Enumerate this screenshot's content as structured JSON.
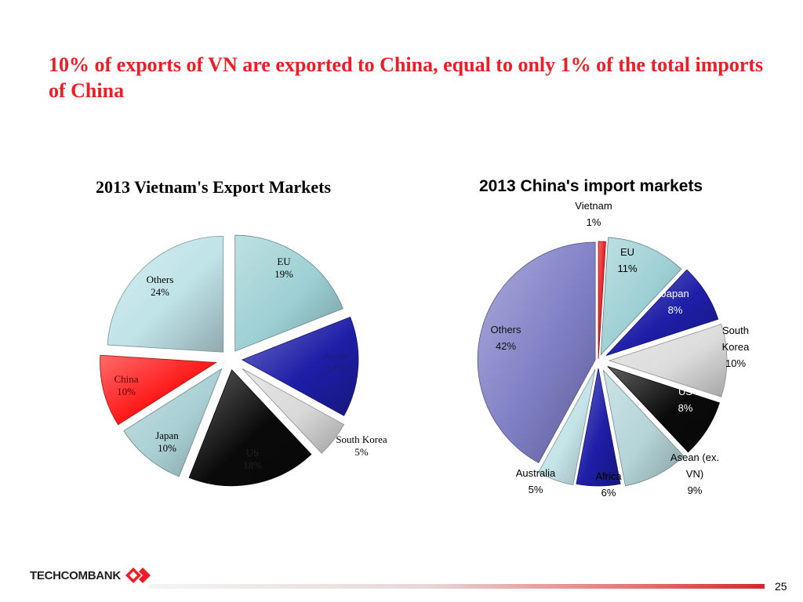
{
  "slide": {
    "title": "10% of exports of VN are exported to China, equal to only 1% of the total imports of China",
    "page_number": "25",
    "logo": {
      "part1": "TECHCOM",
      "part2": "BANK"
    }
  },
  "chart_data": [
    {
      "type": "pie",
      "title": "2013 Vietnam's Export Markets",
      "style": "3d-exploded",
      "slices": [
        {
          "label": "EU",
          "value": 19,
          "value_label": "19%",
          "color": "#9ccfd3"
        },
        {
          "label": "Asean",
          "value": 14,
          "value_label": "14%",
          "color": "#1e1ea8"
        },
        {
          "label": "South Korea",
          "value": 5,
          "value_label": "5%",
          "color": "#d9d9d9"
        },
        {
          "label": "US",
          "value": 18,
          "value_label": "18%",
          "color": "#0a0a0a"
        },
        {
          "label": "Japan",
          "value": 10,
          "value_label": "10%",
          "color": "#a9cfd4"
        },
        {
          "label": "China",
          "value": 10,
          "value_label": "10%",
          "color": "#ff1a1a"
        },
        {
          "label": "Others",
          "value": 24,
          "value_label": "24%",
          "color": "#bfe3e8"
        }
      ]
    },
    {
      "type": "pie",
      "title": "2013 China's import markets",
      "style": "3d-exploded",
      "slices": [
        {
          "label": "Vietnam",
          "value": 1,
          "value_label": "1%",
          "color": "#e8161a"
        },
        {
          "label": "EU",
          "value": 11,
          "value_label": "11%",
          "color": "#9ccfd3"
        },
        {
          "label": "Japan",
          "value": 8,
          "value_label": "8%",
          "color": "#1e1ea8"
        },
        {
          "label": "South Korea",
          "value": 10,
          "value_label": "10%",
          "color": "#dcdcdc"
        },
        {
          "label": "US",
          "value": 8,
          "value_label": "8%",
          "color": "#0a0a0a"
        },
        {
          "label": "Asean (ex. VN)",
          "value": 9,
          "value_label": "9%",
          "color": "#b4d4d8"
        },
        {
          "label": "Africa",
          "value": 6,
          "value_label": "6%",
          "color": "#1e1ea8"
        },
        {
          "label": "Australia",
          "value": 5,
          "value_label": "5%",
          "color": "#c4e4e8"
        },
        {
          "label": "Others",
          "value": 42,
          "value_label": "42%",
          "color": "#7f7fc6"
        }
      ]
    }
  ]
}
